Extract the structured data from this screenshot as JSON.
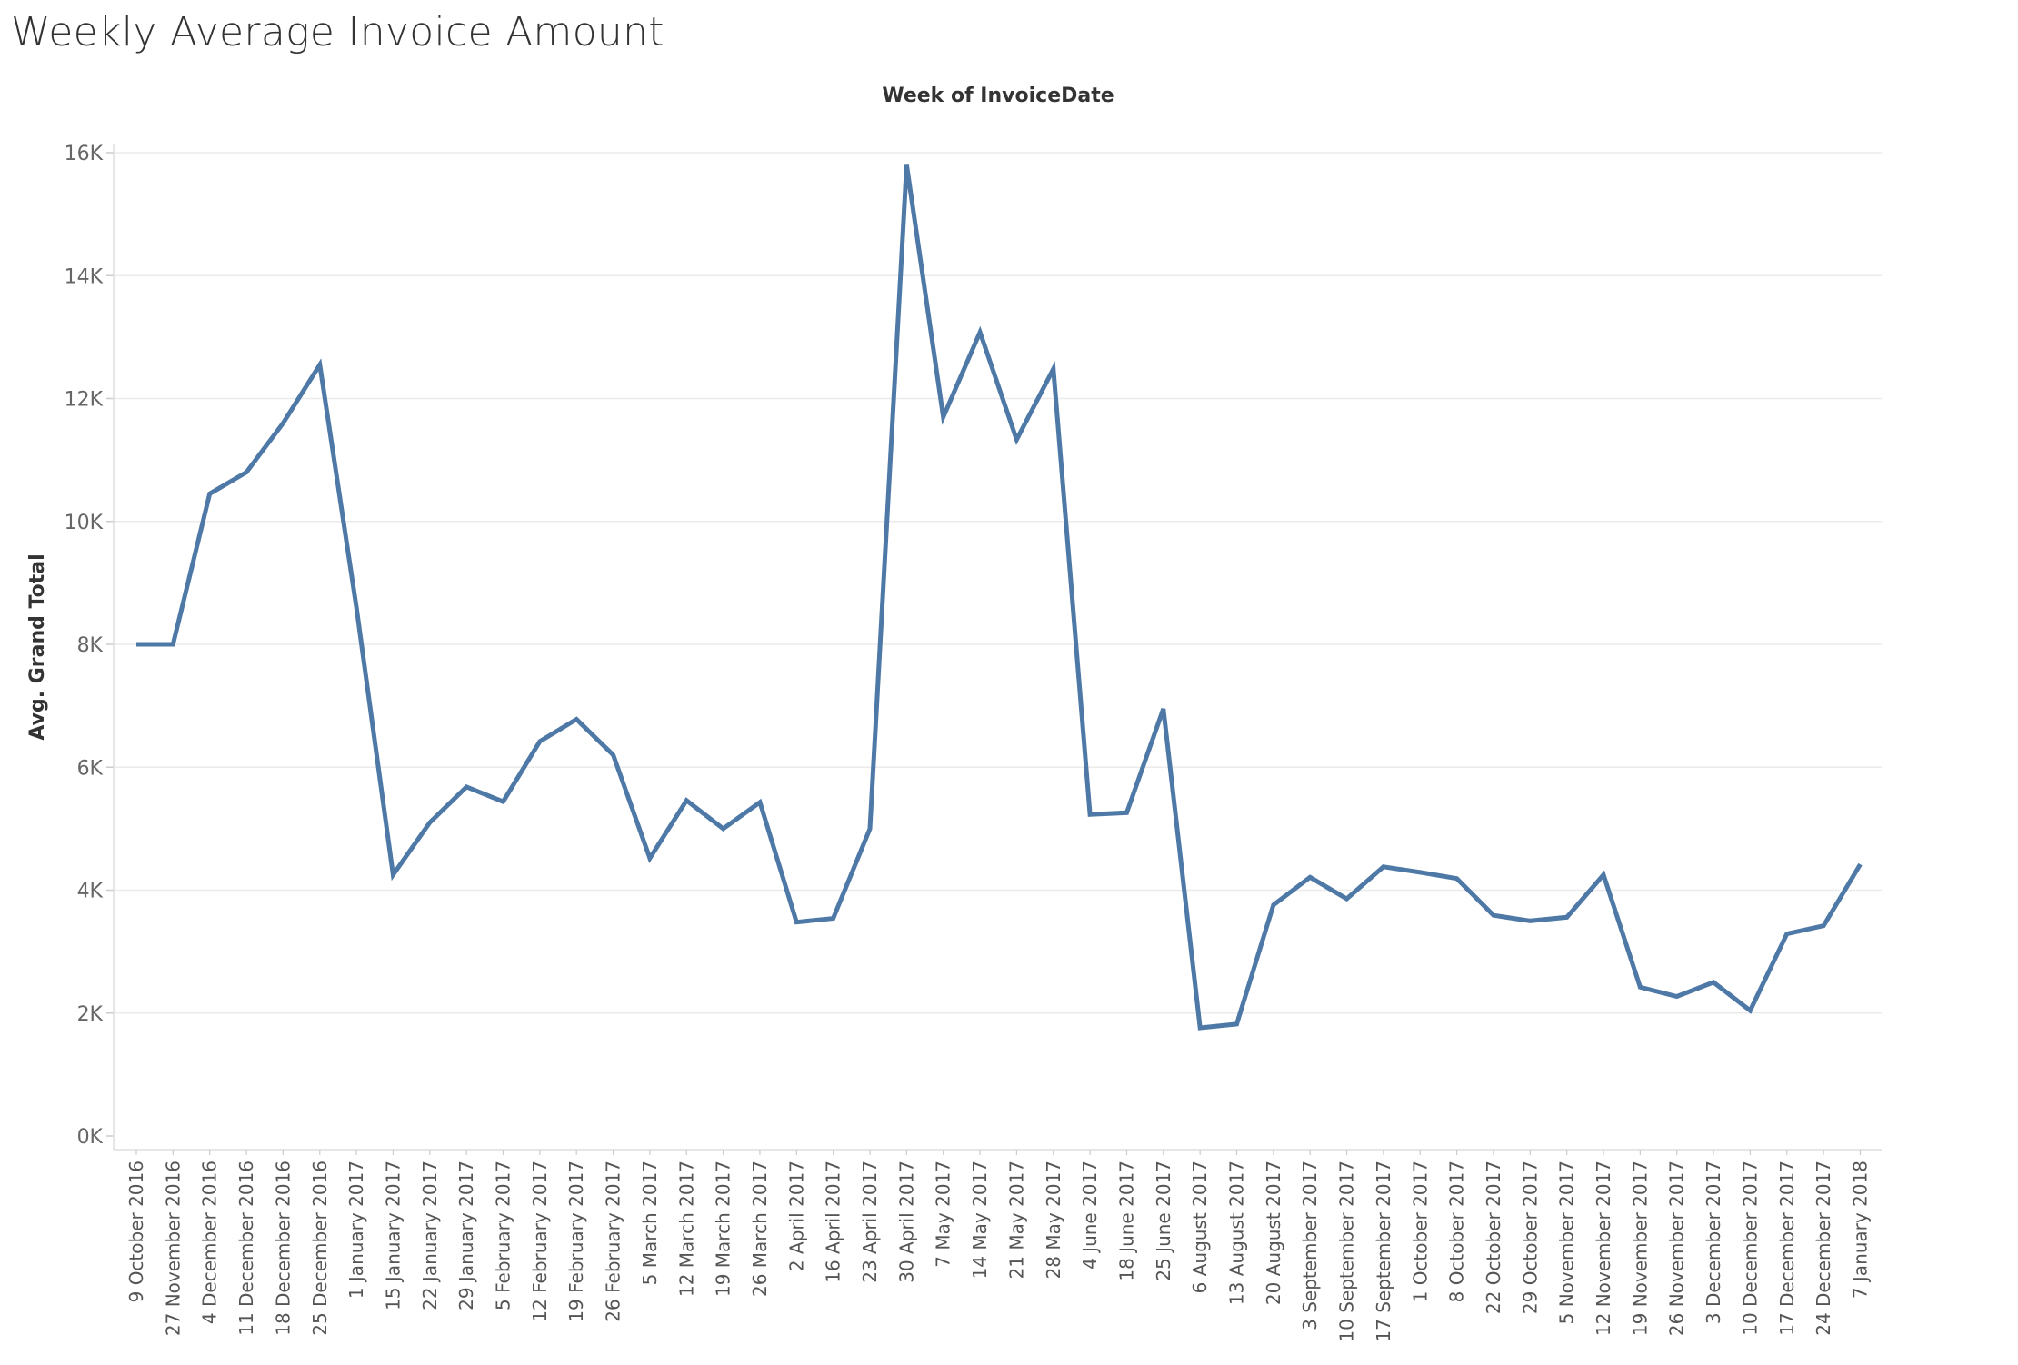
{
  "chart_data": {
    "type": "line",
    "title": "Weekly Average Invoice Amount",
    "xlabel": "Week of InvoiceDate",
    "ylabel": "Avg. Grand Total",
    "ylim": [
      0,
      16000
    ],
    "y_ticks": [
      "0K",
      "2K",
      "4K",
      "6K",
      "8K",
      "10K",
      "12K",
      "14K",
      "16K"
    ],
    "grid": true,
    "line_color": "#4E79A7",
    "categories": [
      "9 October 2016",
      "27 November 2016",
      "4 December 2016",
      "11 December 2016",
      "18 December 2016",
      "25 December 2016",
      "1 January 2017",
      "15 January 2017",
      "22 January 2017",
      "29 January 2017",
      "5 February 2017",
      "12 February 2017",
      "19 February 2017",
      "26 February 2017",
      "5 March 2017",
      "12 March 2017",
      "19 March 2017",
      "26 March 2017",
      "2 April 2017",
      "16 April 2017",
      "23 April 2017",
      "30 April 2017",
      "7 May 2017",
      "14 May 2017",
      "21 May 2017",
      "28 May 2017",
      "4 June 2017",
      "18 June 2017",
      "25 June 2017",
      "6 August 2017",
      "13 August 2017",
      "20 August 2017",
      "3 September 2017",
      "10 September 2017",
      "17 September 2017",
      "1 October 2017",
      "8 October 2017",
      "22 October 2017",
      "29 October 2017",
      "5 November 2017",
      "12 November 2017",
      "19 November 2017",
      "26 November 2017",
      "3 December 2017",
      "10 December 2017",
      "17 December 2017",
      "24 December 2017",
      "7 January 2018"
    ],
    "values": [
      8000,
      8000,
      10450,
      10800,
      11600,
      12550,
      8600,
      4250,
      5100,
      5680,
      5440,
      6420,
      6780,
      6200,
      4520,
      5460,
      5000,
      5430,
      3480,
      3540,
      5000,
      15800,
      11700,
      13080,
      11330,
      12480,
      5230,
      5260,
      6950,
      1760,
      1820,
      3760,
      4210,
      3860,
      4380,
      4290,
      4190,
      3590,
      3500,
      3560,
      4250,
      2420,
      2270,
      2500,
      2040,
      3290,
      3420,
      4420
    ]
  }
}
